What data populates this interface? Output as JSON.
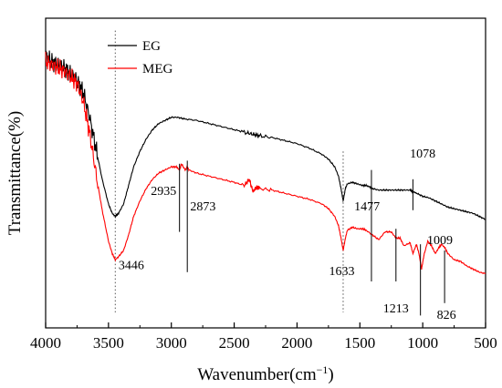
{
  "chart_data": {
    "type": "line",
    "xlabel": "Wavenumber(cm",
    "xlabel_sup": "−1",
    "xlabel_close": ")",
    "ylabel": "Transmittance(%)",
    "xlim": [
      4000,
      500
    ],
    "ylim": [
      0,
      100
    ],
    "x_ticks": [
      "4000",
      "3500",
      "3000",
      "2500",
      "2000",
      "1500",
      "1000",
      "500"
    ],
    "grid": false,
    "legend_position": "top-left",
    "series": [
      {
        "name": "EG",
        "color": "#000000",
        "x": [
          4000,
          3950,
          3900,
          3850,
          3800,
          3750,
          3700,
          3650,
          3600,
          3550,
          3500,
          3470,
          3446,
          3420,
          3380,
          3340,
          3300,
          3250,
          3200,
          3150,
          3100,
          3050,
          3000,
          2950,
          2900,
          2800,
          2700,
          2600,
          2500,
          2400,
          2350,
          2300,
          2200,
          2100,
          2000,
          1900,
          1800,
          1750,
          1700,
          1670,
          1650,
          1633,
          1615,
          1600,
          1560,
          1520,
          1480,
          1450,
          1420,
          1400,
          1350,
          1300,
          1250,
          1200,
          1150,
          1100,
          1078,
          1050,
          1000,
          950,
          900,
          850,
          800,
          750,
          700,
          650,
          600,
          550,
          500
        ],
        "y": [
          88,
          86,
          85,
          84,
          82,
          80,
          76,
          68,
          58,
          48,
          40,
          37,
          36,
          37,
          40,
          46,
          52,
          57,
          61,
          64,
          66,
          67,
          68,
          68,
          67.5,
          67,
          66,
          65,
          64,
          63,
          62.5,
          62,
          61.5,
          60.5,
          59.5,
          58,
          56,
          54.5,
          52,
          49,
          45,
          41,
          45,
          46.5,
          47,
          46.5,
          46,
          46,
          45.5,
          45,
          44.5,
          44.5,
          44.5,
          44.5,
          44.5,
          44.5,
          44,
          43.5,
          42.5,
          42,
          41,
          40,
          39,
          38.5,
          38,
          37.5,
          37,
          36,
          35
        ]
      },
      {
        "name": "MEG",
        "color": "#ff0000",
        "x": [
          4000,
          3950,
          3900,
          3850,
          3800,
          3750,
          3700,
          3650,
          3600,
          3550,
          3500,
          3470,
          3446,
          3420,
          3380,
          3340,
          3300,
          3250,
          3200,
          3150,
          3100,
          3050,
          3000,
          2960,
          2935,
          2920,
          2890,
          2873,
          2860,
          2800,
          2700,
          2600,
          2500,
          2420,
          2380,
          2350,
          2320,
          2300,
          2200,
          2100,
          2000,
          1900,
          1800,
          1750,
          1700,
          1670,
          1650,
          1633,
          1615,
          1600,
          1560,
          1520,
          1477,
          1450,
          1400,
          1350,
          1300,
          1250,
          1213,
          1180,
          1150,
          1100,
          1078,
          1050,
          1030,
          1009,
          990,
          960,
          930,
          900,
          870,
          850,
          826,
          800,
          750,
          700,
          650,
          600,
          550,
          500
        ],
        "y": [
          86,
          85,
          84,
          83,
          81,
          79,
          73,
          63,
          50,
          38,
          28,
          24,
          22,
          23,
          25,
          30,
          36,
          41,
          45,
          48,
          50,
          51,
          52,
          52,
          51,
          53,
          51,
          52,
          51,
          50,
          49,
          48,
          47,
          46,
          48,
          44,
          45.5,
          45,
          44.5,
          43.5,
          42.5,
          41.5,
          40,
          38.5,
          36,
          33,
          29,
          25,
          29,
          31.5,
          32.5,
          32,
          32,
          31.5,
          30,
          28.5,
          31,
          31,
          29,
          29,
          26.5,
          27.5,
          24,
          27,
          24,
          19,
          23.5,
          28,
          26.5,
          24,
          26,
          27,
          26,
          24,
          22,
          21.5,
          20,
          19,
          18,
          17.5
        ]
      }
    ],
    "annotations": {
      "3446": "3446",
      "2935": "2935",
      "2873": "2873",
      "1633": "1633",
      "1477": "1477",
      "1078": "1078",
      "1213": "1213",
      "1009": "1009",
      "826": "826"
    }
  }
}
